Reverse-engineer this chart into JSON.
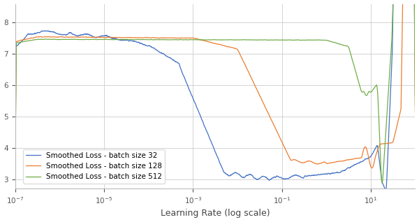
{
  "title": "",
  "xlabel": "Learning Rate (log scale)",
  "ylabel": "",
  "xlim": [
    1e-07,
    100.0
  ],
  "ylim": [
    2.7,
    8.6
  ],
  "yticks": [
    3,
    4,
    5,
    6,
    7,
    8
  ],
  "colors": {
    "batch32": "#4472c4",
    "batch128": "#ed7d31",
    "batch512": "#70ad47"
  },
  "legend_labels": [
    "Smoothed Loss - batch size 32",
    "Smoothed Loss - batch size 128",
    "Smoothed Loss - batch size 512"
  ],
  "background_color": "#ffffff",
  "grid_color": "#cccccc",
  "line_width": 0.9
}
